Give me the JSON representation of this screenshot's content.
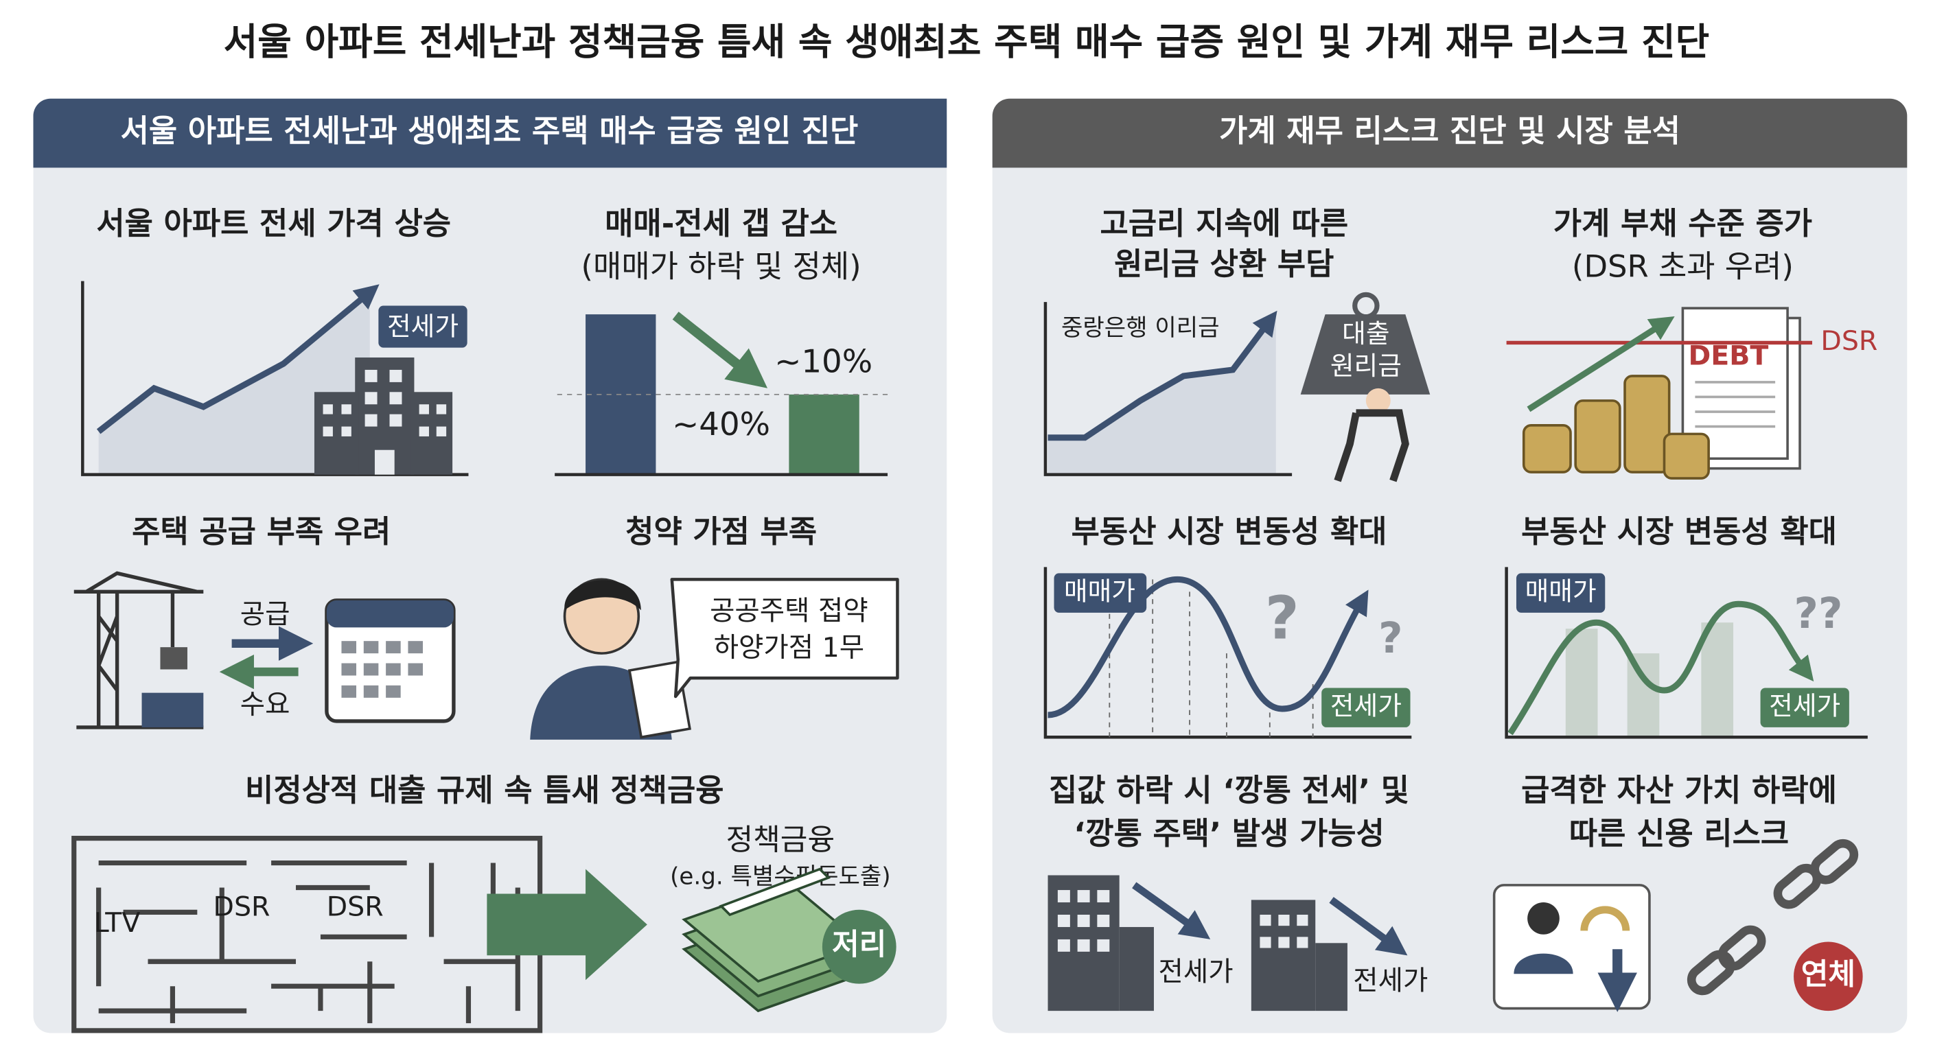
{
  "title": "서울 아파트 전세난과 정책금융 틈새 속 생애최초 주택 매수 급증 원인 및 가계 재무 리스크 진단",
  "left": {
    "header": "서울 아파트 전세난과 생애최초 주택 매수 급증 원인 진단",
    "panels": [
      {
        "title": [
          "서울 아파트 전세 가격 상승"
        ],
        "labels": [
          "전세가"
        ]
      },
      {
        "title": [
          "매매-전세 갭 감소",
          "(매매가 하락 및 정체)"
        ],
        "labels": [
          "~10%",
          "~40%"
        ]
      },
      {
        "title": [
          "주택 공급 부족 우려"
        ],
        "labels": [
          "공급",
          "수요"
        ]
      },
      {
        "title": [
          "청약 가점 부족"
        ],
        "labels": [
          "공공주택 접약",
          "하양가점 1무"
        ]
      },
      {
        "title": [
          "비정상적 대출 규제 속 틈새 정책금융"
        ],
        "labels": [
          "LTV",
          "DSR",
          "DSR",
          "정책금융",
          "(e.g. 특별수핑돈도출)",
          "저리"
        ]
      }
    ]
  },
  "right": {
    "header": "가계 재무 리스크 진단 및 시장 분석",
    "panels": [
      {
        "title": [
          "고금리 지속에 따른",
          "원리금 상환 부담"
        ],
        "labels": [
          "중랑은행 이리금",
          "대출",
          "원리금"
        ]
      },
      {
        "title": [
          "가계 부채 수준 증가",
          "(DSR 초과 우려)"
        ],
        "labels": [
          "DEBT",
          "DSR"
        ]
      },
      {
        "title": [
          "부동산 시장 변동성 확대"
        ],
        "labels": [
          "매매가",
          "?",
          "?",
          "전세가"
        ]
      },
      {
        "title": [
          "부동산 시장 변동성 확대"
        ],
        "labels": [
          "매매가",
          "??",
          "전세가"
        ]
      },
      {
        "title": [
          "집값 하락 시 ‘깡통 전세’ 및",
          "‘깡통 주택’ 발생 가능성"
        ],
        "labels": [
          "전세가",
          "전세가"
        ]
      },
      {
        "title": [
          "급격한 자산 가치 하락에",
          "따른 신용 리스크"
        ],
        "labels": [
          "연체"
        ]
      }
    ]
  }
}
